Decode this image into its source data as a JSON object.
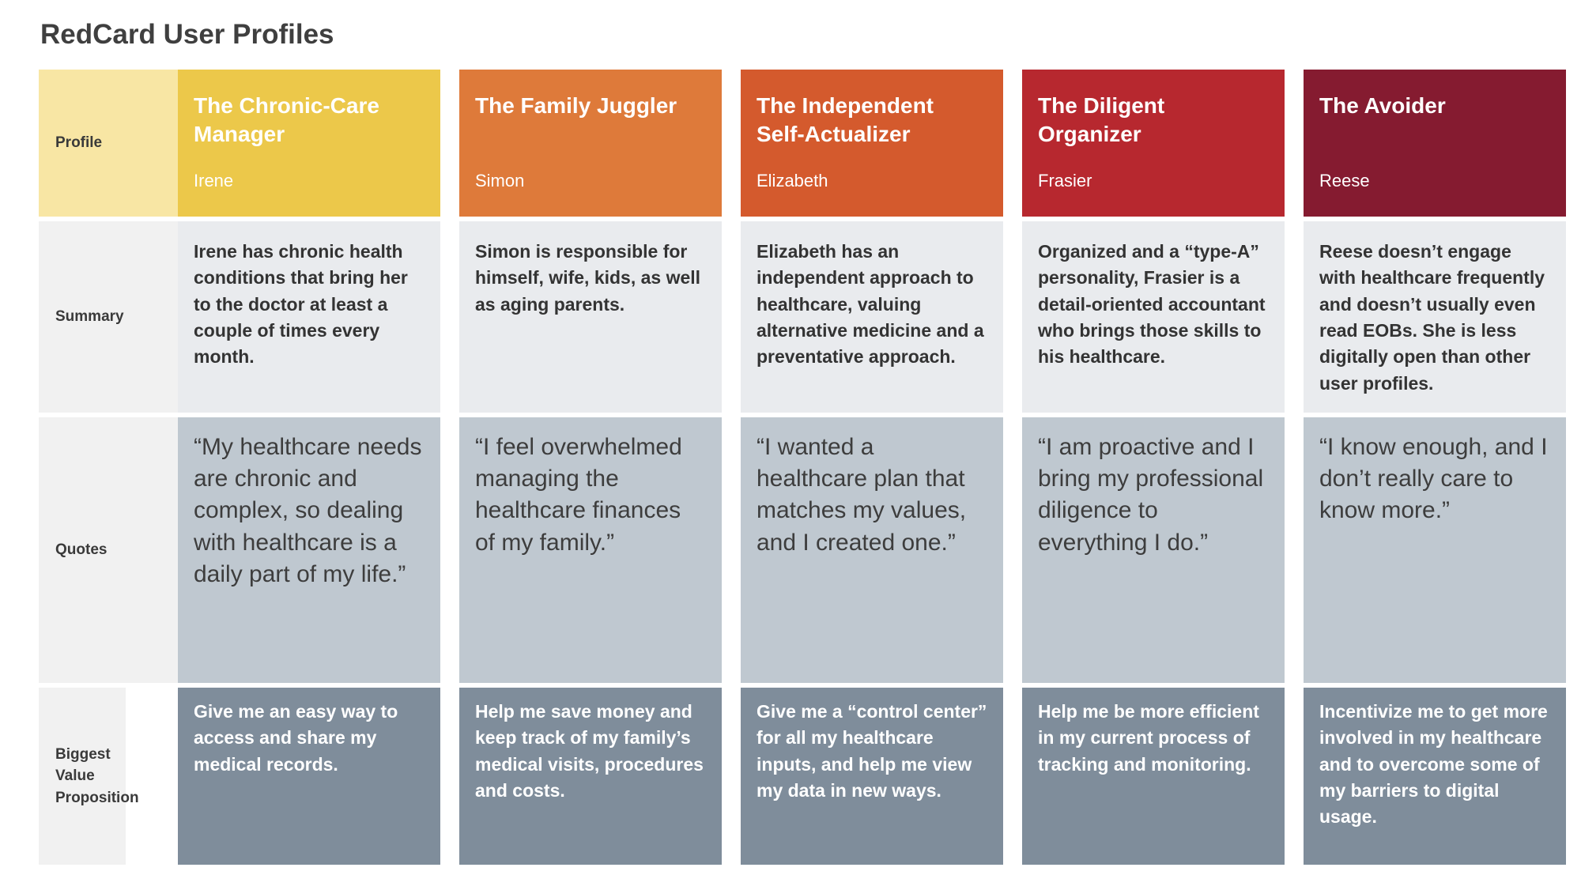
{
  "page_title": "RedCard User Profiles",
  "row_labels": {
    "profile": "Profile",
    "summary": "Summary",
    "quotes": "Quotes",
    "value": "Biggest Value Proposition"
  },
  "colors": {
    "chronic_care": "#ecc84a",
    "family_juggler": "#de7a3a",
    "self_actualizer": "#d45a2d",
    "diligent_organizer": "#b7282f",
    "avoider": "#851b30",
    "summary_bg": "#e9ebee",
    "quote_bg": "#bfc8d0",
    "value_bg": "#7f8d9b"
  },
  "profiles": [
    {
      "title": "The Chronic-Care Manager",
      "name": "Irene",
      "summary": "Irene has chronic health conditions that bring her to the doctor at least a couple of times every month.",
      "quote": "“My healthcare needs are chronic and complex, so dealing with healthcare is a daily part of my life.”",
      "value": "Give me an easy way to access and share my medical records."
    },
    {
      "title": "The Family Juggler",
      "name": "Simon",
      "summary": "Simon is responsible for himself, wife, kids, as well as aging parents.",
      "quote": "“I feel overwhelmed managing the healthcare finances of my family.”",
      "value": "Help me save money and keep track of my family’s medical visits, procedures and costs."
    },
    {
      "title": "The Independent Self-Actualizer",
      "name": "Elizabeth",
      "summary": "Elizabeth has an independent approach to healthcare, valuing alternative medicine and a preventative approach.",
      "quote": "“I wanted a healthcare plan that matches my values, and I created one.”",
      "value": "Give me a “control center” for all my healthcare inputs, and help me view my data in new ways."
    },
    {
      "title": "The Diligent Organizer",
      "name": "Frasier",
      "summary": "Organized and a “type-A” personality, Frasier is a detail-oriented accountant who brings those skills to his healthcare.",
      "quote": "“I am proactive and I bring my professional diligence to everything I do.”",
      "value": "Help me be more efficient in my current process of tracking and monitoring."
    },
    {
      "title": "The Avoider",
      "name": "Reese",
      "summary": "Reese doesn’t engage with healthcare frequently and doesn’t usually even read EOBs. She is less digitally open than other user profiles.",
      "quote": "“I know enough, and I don’t really care to know more.”",
      "value": "Incentivize me to get more involved in my healthcare and to overcome some of my barriers to digital usage."
    }
  ]
}
